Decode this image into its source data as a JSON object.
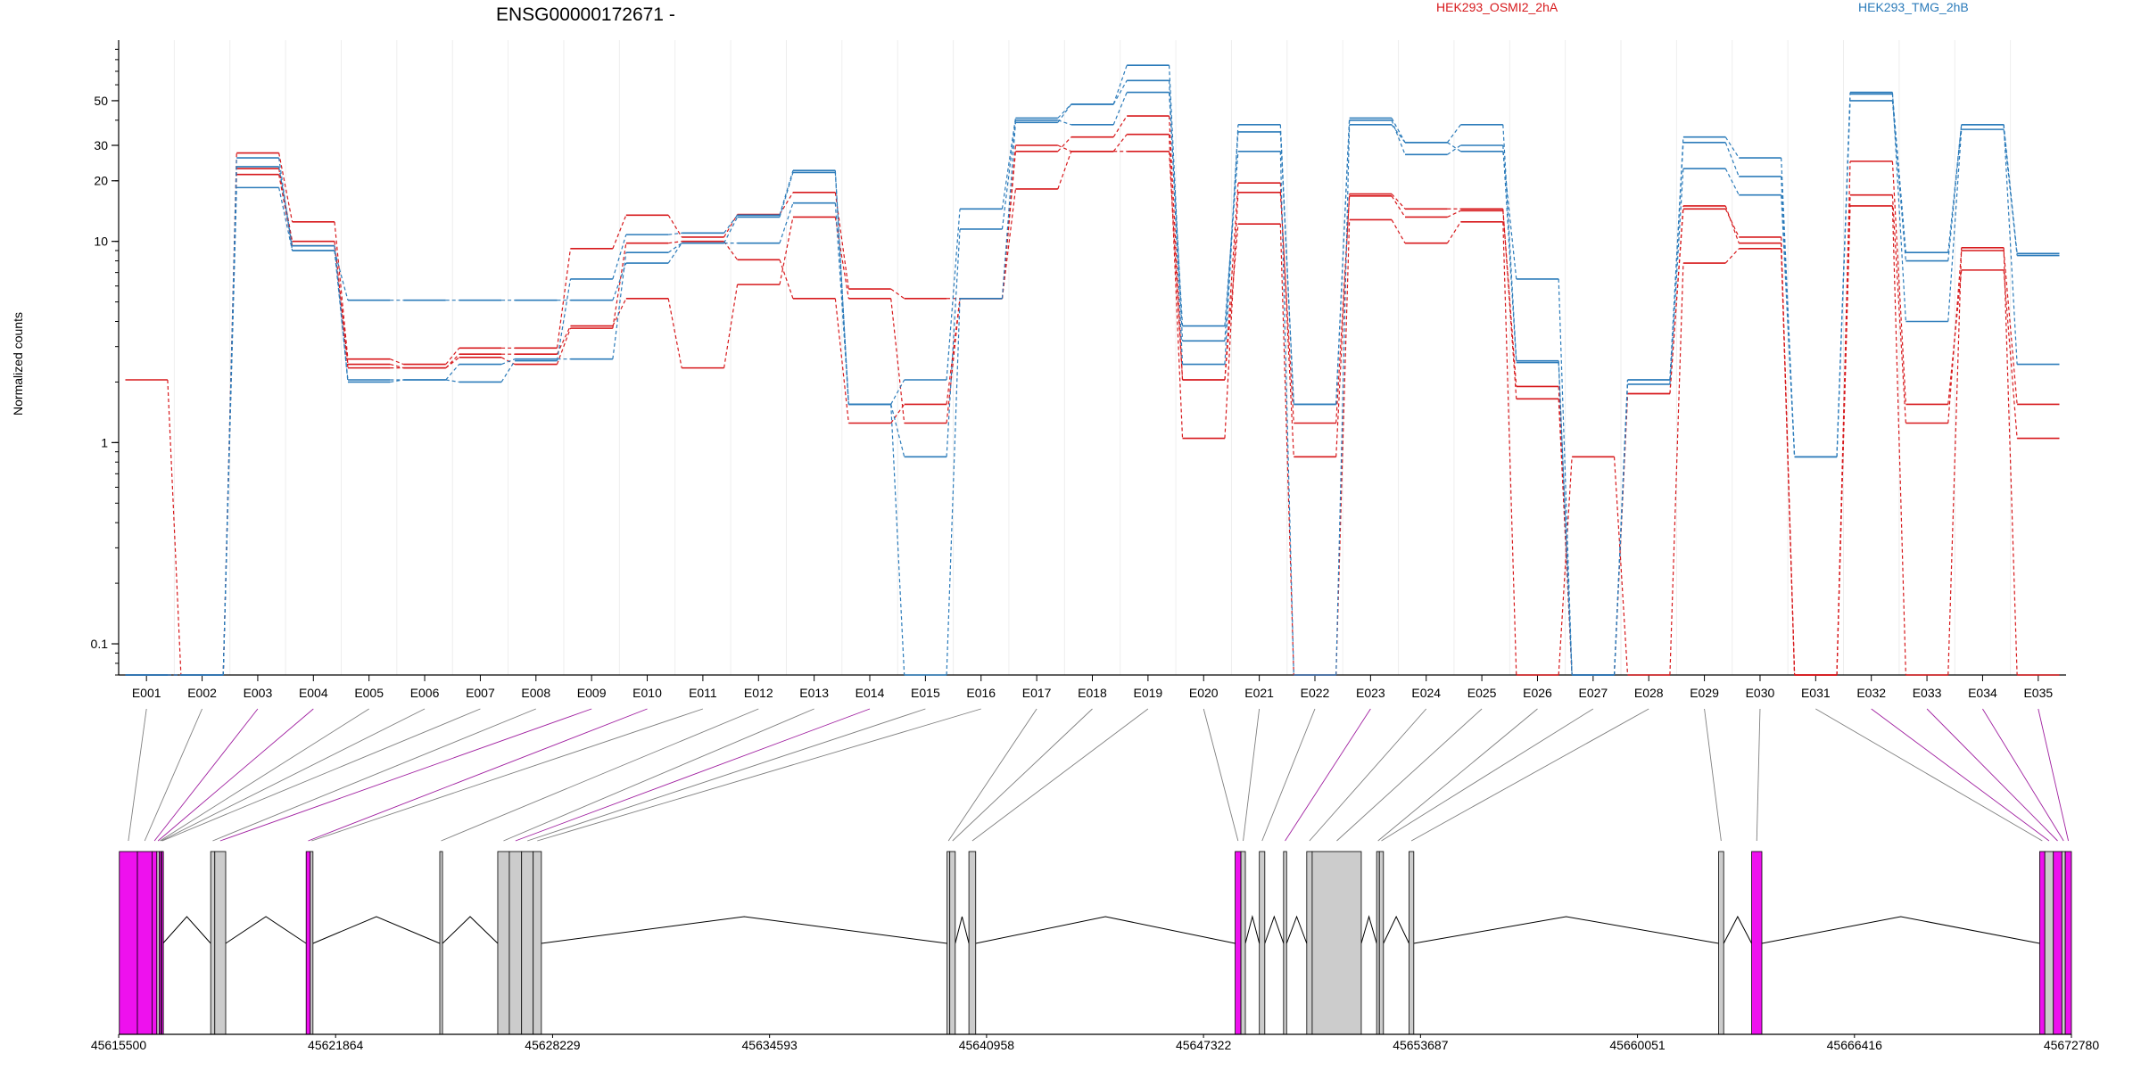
{
  "chart_data": {
    "type": "line",
    "title": "ENSG00000172671 -",
    "ylabel": "Normalized counts",
    "yscale": "log",
    "yticks": [
      0.1,
      1,
      10,
      20,
      30,
      50
    ],
    "ytick_labels": [
      "0.1",
      "1",
      "10",
      "20",
      "30",
      "50"
    ],
    "ylim": [
      0.07,
      100
    ],
    "grid": "vertical",
    "legend_position": "top",
    "colors": {
      "HEK293_OSMI2_2hA": "#d7191c",
      "HEK293_TMG_2hB": "#2b7bba",
      "constitutive": "#cccccc",
      "differential": "#ee11ee"
    },
    "categories": [
      "E001",
      "E002",
      "E003",
      "E004",
      "E005",
      "E006",
      "E007",
      "E008",
      "E009",
      "E010",
      "E011",
      "E012",
      "E013",
      "E014",
      "E015",
      "E016",
      "E017",
      "E018",
      "E019",
      "E020",
      "E021",
      "E022",
      "E023",
      "E024",
      "E025",
      "E026",
      "E027",
      "E028",
      "E029",
      "E030",
      "E031",
      "E032",
      "E033",
      "E034",
      "E035"
    ],
    "series": [
      {
        "name": "HEK293_OSMI2_2hA",
        "group": "HEK293_OSMI2_2hA",
        "values": [
          2.05,
          0.07,
          27.5,
          12.5,
          2.6,
          2.45,
          2.95,
          2.95,
          9.2,
          13.5,
          10.5,
          13.6,
          17.5,
          5.8,
          5.2,
          5.2,
          28,
          33,
          42,
          2.05,
          12.2,
          0.07,
          12.8,
          9.8,
          12.5,
          0.07,
          0.85,
          0.07,
          7.8,
          9.2,
          0.07,
          15,
          0.07,
          9.3,
          0.07
        ]
      },
      {
        "name": "HEK293_OSMI2_2hA",
        "group": "HEK293_OSMI2_2hA",
        "values": [
          0.07,
          0.07,
          23,
          10,
          2.45,
          2.35,
          2.75,
          2.75,
          3.8,
          5.2,
          2.35,
          6.1,
          13.2,
          5.2,
          1.25,
          5.2,
          18.2,
          28,
          34,
          1.05,
          17.5,
          1.25,
          16.8,
          13.2,
          14.2,
          1.9,
          0.07,
          1.75,
          14.5,
          10.5,
          0.07,
          17,
          1.25,
          9,
          1.55
        ]
      },
      {
        "name": "HEK293_OSMI2_2hA",
        "group": "HEK293_OSMI2_2hA",
        "values": [
          0.07,
          0.07,
          21.5,
          9.5,
          2.35,
          2.35,
          2.65,
          2.45,
          3.7,
          9.8,
          10,
          8.1,
          5.2,
          1.25,
          1.55,
          5.2,
          30,
          28,
          28,
          2.05,
          19.5,
          0.85,
          17.2,
          14.5,
          14.5,
          1.65,
          0.07,
          1.75,
          15,
          9.8,
          0.07,
          25,
          1.55,
          7.2,
          1.05
        ]
      },
      {
        "name": "HEK293_TMG_2hB",
        "group": "HEK293_TMG_2hB",
        "values": [
          0.07,
          0.07,
          18.5,
          9,
          5.1,
          5.1,
          5.1,
          5.1,
          5.1,
          7.8,
          9.8,
          13.2,
          22,
          1.55,
          0.85,
          11.5,
          40,
          38,
          55,
          3.8,
          28,
          0.07,
          38,
          31,
          28,
          6.5,
          0.07,
          1.95,
          23,
          17,
          0.85,
          50,
          8,
          38,
          2.45
        ]
      },
      {
        "name": "HEK293_TMG_2hB",
        "group": "HEK293_TMG_2hB",
        "values": [
          0.07,
          0.07,
          26,
          9,
          2.05,
          2.05,
          2.45,
          2.6,
          2.6,
          8.8,
          9.8,
          9.8,
          15.5,
          1.55,
          2.05,
          14.5,
          41,
          48,
          75,
          3.2,
          35,
          1.55,
          40,
          27,
          30,
          2.5,
          0.07,
          2.05,
          31,
          21,
          0.85,
          55,
          4,
          36,
          8.5
        ]
      },
      {
        "name": "HEK293_TMG_2hB",
        "group": "HEK293_TMG_2hB",
        "values": [
          0.07,
          0.07,
          23.5,
          9.5,
          2,
          2.05,
          2,
          2.55,
          6.5,
          10.8,
          11,
          13.5,
          22.5,
          1.55,
          0.07,
          5.2,
          39,
          48,
          63,
          2.45,
          38,
          1.55,
          41,
          31,
          38,
          2.55,
          0.07,
          2.05,
          33,
          26,
          0.85,
          54,
          8.8,
          38,
          8.7
        ]
      }
    ],
    "genome_coordinates": [
      "45615500",
      "45621864",
      "45628229",
      "45634593",
      "45640958",
      "45647322",
      "45653687",
      "45660051",
      "45666416",
      "45672780"
    ],
    "genome_range": [
      45615500,
      45672780
    ],
    "exons": [
      {
        "id": "E001",
        "start": 45615520,
        "end": 45616050,
        "differential": true
      },
      {
        "id": "E002",
        "start": 45616050,
        "end": 45616480,
        "differential": true
      },
      {
        "id": "E003",
        "start": 45616480,
        "end": 45616620,
        "differential": true
      },
      {
        "id": "E004",
        "start": 45616620,
        "end": 45616690,
        "differential": false
      },
      {
        "id": "E005",
        "start": 45616690,
        "end": 45616740,
        "differential": true
      },
      {
        "id": "E006",
        "start": 45616740,
        "end": 45616760,
        "differential": false
      },
      {
        "id": "E007",
        "start": 45616760,
        "end": 45616800,
        "differential": true
      },
      {
        "id": "E008",
        "start": 45618200,
        "end": 45618320,
        "differential": false
      },
      {
        "id": "E009",
        "start": 45618320,
        "end": 45618640,
        "differential": false
      },
      {
        "id": "E010",
        "start": 45621000,
        "end": 45621120,
        "differential": true
      },
      {
        "id": "E011",
        "start": 45621120,
        "end": 45621200,
        "differential": false
      },
      {
        "id": "E012",
        "start": 45624920,
        "end": 45625000,
        "differential": false
      },
      {
        "id": "E013",
        "start": 45626620,
        "end": 45626960,
        "differential": false
      },
      {
        "id": "E014",
        "start": 45626960,
        "end": 45627320,
        "differential": false
      },
      {
        "id": "E015",
        "start": 45627320,
        "end": 45627660,
        "differential": false
      },
      {
        "id": "E016",
        "start": 45627660,
        "end": 45627900,
        "differential": false
      },
      {
        "id": "E017",
        "start": 45639800,
        "end": 45639880,
        "differential": false
      },
      {
        "id": "E018",
        "start": 45639880,
        "end": 45640040,
        "differential": false
      },
      {
        "id": "E019",
        "start": 45640440,
        "end": 45640640,
        "differential": false
      },
      {
        "id": "E020",
        "start": 45648250,
        "end": 45648420,
        "differential": true
      },
      {
        "id": "E021",
        "start": 45648420,
        "end": 45648550,
        "differential": false
      },
      {
        "id": "E022",
        "start": 45648960,
        "end": 45649120,
        "differential": false
      },
      {
        "id": "E023",
        "start": 45649670,
        "end": 45649760,
        "differential": false
      },
      {
        "id": "E024",
        "start": 45650350,
        "end": 45650510,
        "differential": false
      },
      {
        "id": "E025",
        "start": 45650510,
        "end": 45651950,
        "differential": false
      },
      {
        "id": "E026",
        "start": 45652400,
        "end": 45652480,
        "differential": false
      },
      {
        "id": "E027",
        "start": 45652480,
        "end": 45652600,
        "differential": false
      },
      {
        "id": "E028",
        "start": 45653350,
        "end": 45653490,
        "differential": false
      },
      {
        "id": "E029",
        "start": 45662430,
        "end": 45662580,
        "differential": false
      },
      {
        "id": "E030",
        "start": 45663400,
        "end": 45663700,
        "differential": true
      },
      {
        "id": "E031",
        "start": 45671850,
        "end": 45672000,
        "differential": true
      },
      {
        "id": "E032",
        "start": 45672000,
        "end": 45672250,
        "differential": false
      },
      {
        "id": "E033",
        "start": 45672250,
        "end": 45672500,
        "differential": true
      },
      {
        "id": "E034",
        "start": 45672500,
        "end": 45672600,
        "differential": false
      },
      {
        "id": "E035",
        "start": 45672600,
        "end": 45672780,
        "differential": true
      }
    ],
    "connectors": [
      {
        "exon": "E001",
        "differential": false
      },
      {
        "exon": "E002",
        "differential": false
      },
      {
        "exon": "E003",
        "differential": true
      },
      {
        "exon": "E004",
        "differential": true
      },
      {
        "exon": "E005",
        "differential": false
      },
      {
        "exon": "E006",
        "differential": false
      },
      {
        "exon": "E007",
        "differential": false
      },
      {
        "exon": "E008",
        "differential": false
      },
      {
        "exon": "E009",
        "differential": true
      },
      {
        "exon": "E010",
        "differential": true
      },
      {
        "exon": "E011",
        "differential": false
      },
      {
        "exon": "E012",
        "differential": false
      },
      {
        "exon": "E013",
        "differential": false
      },
      {
        "exon": "E014",
        "differential": true
      },
      {
        "exon": "E015",
        "differential": false
      },
      {
        "exon": "E016",
        "differential": false
      },
      {
        "exon": "E017",
        "differential": false
      },
      {
        "exon": "E018",
        "differential": false
      },
      {
        "exon": "E019",
        "differential": false
      },
      {
        "exon": "E020",
        "differential": false
      },
      {
        "exon": "E021",
        "differential": false
      },
      {
        "exon": "E022",
        "differential": false
      },
      {
        "exon": "E023",
        "differential": true
      },
      {
        "exon": "E024",
        "differential": false
      },
      {
        "exon": "E025",
        "differential": false
      },
      {
        "exon": "E026",
        "differential": false
      },
      {
        "exon": "E027",
        "differential": false
      },
      {
        "exon": "E028",
        "differential": false
      },
      {
        "exon": "E029",
        "differential": false
      },
      {
        "exon": "E030",
        "differential": false
      },
      {
        "exon": "E031",
        "differential": false
      },
      {
        "exon": "E032",
        "differential": true
      },
      {
        "exon": "E033",
        "differential": true
      },
      {
        "exon": "E034",
        "differential": true
      },
      {
        "exon": "E035",
        "differential": true
      }
    ]
  }
}
